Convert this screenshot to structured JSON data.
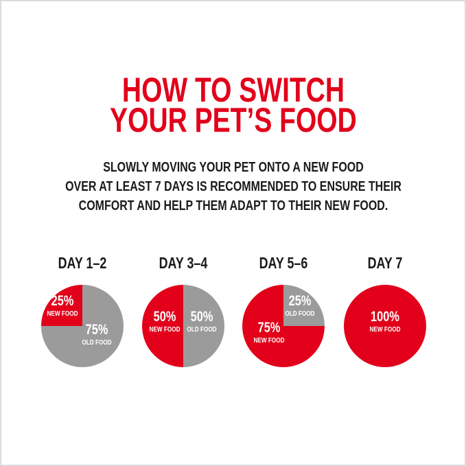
{
  "title": {
    "line1": "HOW TO SWITCH",
    "line2": "YOUR PET’S FOOD"
  },
  "subtitle": {
    "line1": "SLOWLY MOVING YOUR PET ONTO A NEW FOOD",
    "line2": "OVER AT LEAST 7 DAYS IS RECOMMENDED TO ENSURE THEIR",
    "line3": "COMFORT AND HELP THEM ADAPT TO THEIR NEW FOOD."
  },
  "colors": {
    "title": "#e2001a",
    "new_food": "#e2001a",
    "old_food": "#9b9b9b",
    "text": "#1a1a1a",
    "frame": "#dcdcdc"
  },
  "chart_data": [
    {
      "type": "pie",
      "title": "DAY 1–2",
      "categories": [
        "NEW FOOD",
        "OLD FOOD"
      ],
      "values": [
        25,
        75
      ],
      "labels": [
        "25%",
        "75%"
      ]
    },
    {
      "type": "pie",
      "title": "DAY 3–4",
      "categories": [
        "NEW FOOD",
        "OLD FOOD"
      ],
      "values": [
        50,
        50
      ],
      "labels": [
        "50%",
        "50%"
      ]
    },
    {
      "type": "pie",
      "title": "DAY 5–6",
      "categories": [
        "NEW FOOD",
        "OLD FOOD"
      ],
      "values": [
        75,
        25
      ],
      "labels": [
        "75%",
        "25%"
      ]
    },
    {
      "type": "pie",
      "title": "DAY 7",
      "categories": [
        "NEW FOOD"
      ],
      "values": [
        100
      ],
      "labels": [
        "100%"
      ]
    }
  ]
}
